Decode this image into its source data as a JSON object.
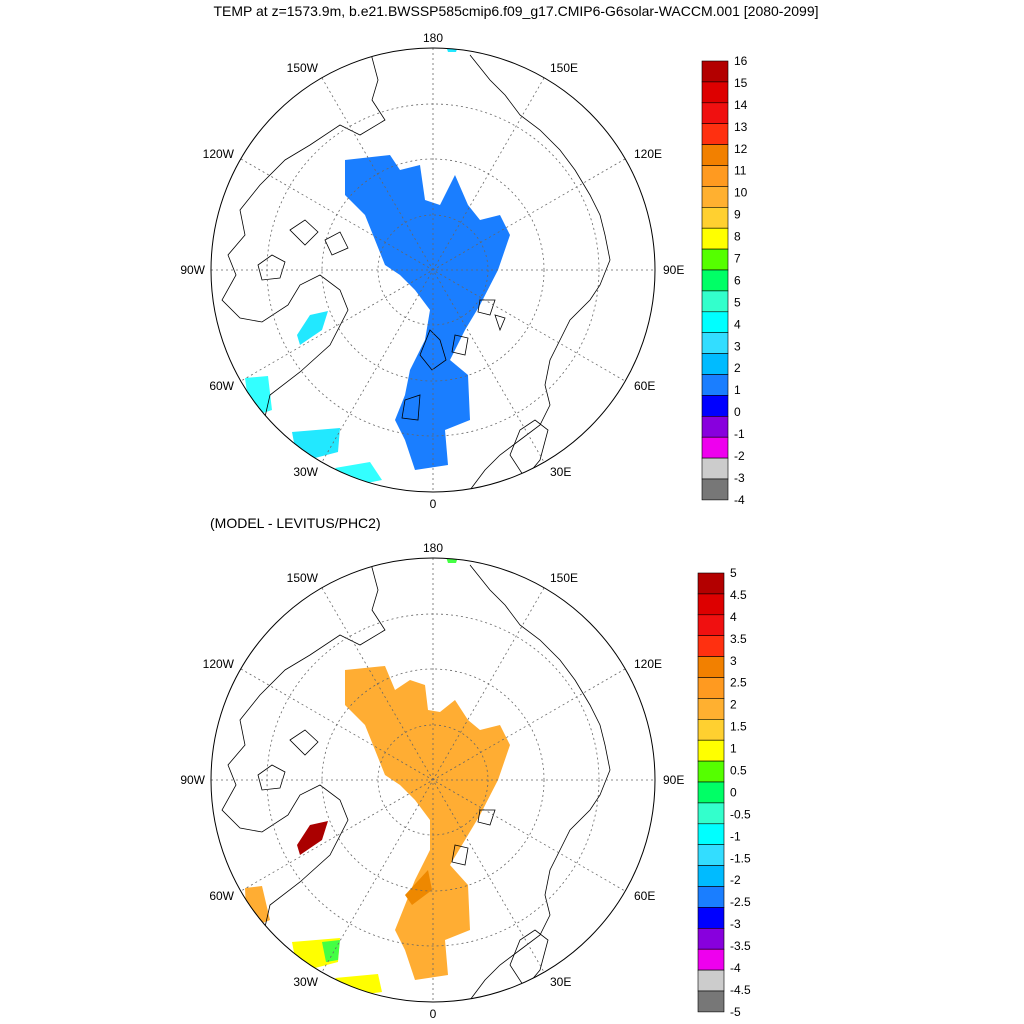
{
  "title": "TEMP at z=1573.9m, b.e21.BWSSP585cmip6.f09_g17.CMIP6-G6solar-WACCM.001 [2080-2099]",
  "subtitle": "(MODEL - LEVITUS/PHC2)",
  "map_labels": {
    "top": "180",
    "bottom": "0",
    "left": "90W",
    "right": "90E",
    "lon_150W": "150W",
    "lon_150E": "150E",
    "lon_120W": "120W",
    "lon_120E": "120E",
    "lon_60W": "60W",
    "lon_60E": "60E",
    "lon_30W": "30W",
    "lon_30E": "30E"
  },
  "colorbars": [
    {
      "labels": [
        "16",
        "15",
        "14",
        "13",
        "12",
        "11",
        "10",
        "9",
        "8",
        "7",
        "6",
        "5",
        "4",
        "3",
        "2",
        "1",
        "0",
        "-1",
        "-2",
        "-3",
        "-4"
      ],
      "colors": [
        "#b30000",
        "#dd0000",
        "#f01010",
        "#ff3010",
        "#f28000",
        "#ff9a20",
        "#ffb030",
        "#ffd030",
        "#ffff00",
        "#55ff00",
        "#00ff66",
        "#33ffcc",
        "#00ffff",
        "#33ddff",
        "#00bbff",
        "#1a7eff",
        "#0000ff",
        "#8800dd",
        "#ee00ee",
        "#cccccc",
        "#777777"
      ]
    },
    {
      "labels": [
        "5",
        "4.5",
        "4",
        "3.5",
        "3",
        "2.5",
        "2",
        "1.5",
        "1",
        "0.5",
        "0",
        "-0.5",
        "-1",
        "-1.5",
        "-2",
        "-2.5",
        "-3",
        "-3.5",
        "-4",
        "-4.5",
        "-5"
      ],
      "colors": [
        "#b30000",
        "#dd0000",
        "#f01010",
        "#ff3010",
        "#f28000",
        "#ff9a20",
        "#ffb030",
        "#ffd030",
        "#ffff00",
        "#55ff00",
        "#00ff66",
        "#33ffcc",
        "#00ffff",
        "#33ddff",
        "#00bbff",
        "#1a7eff",
        "#0000ff",
        "#8800dd",
        "#ee00ee",
        "#cccccc",
        "#777777"
      ]
    }
  ],
  "field_colors": {
    "top_main": "#1a7eff",
    "top_cyan": "#33ffff",
    "top_light": "#22e8ff",
    "bottom_main": "#ffad33",
    "bottom_dark_red": "#aa0000",
    "bottom_yellow": "#ffff00",
    "bottom_green": "#44ff44",
    "bottom_dark_orange": "#ee8800"
  }
}
